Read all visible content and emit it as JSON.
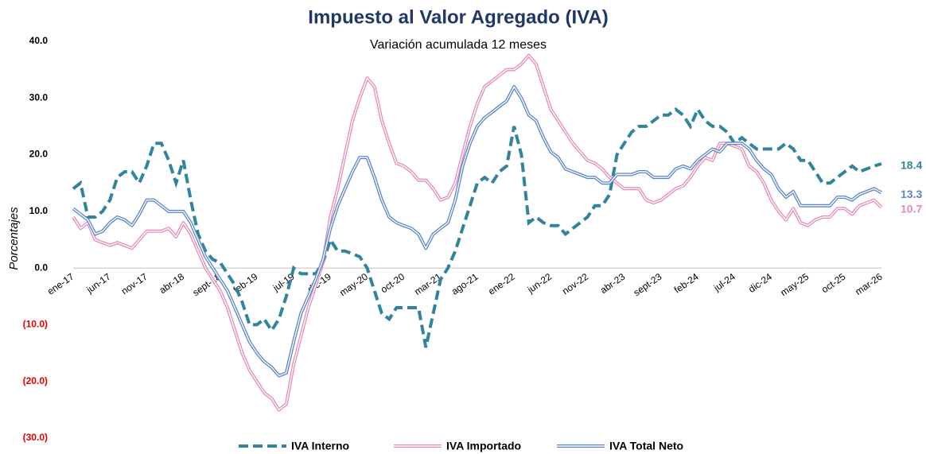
{
  "chart_data": {
    "type": "line",
    "title": "Impuesto al Valor Agregado (IVA)",
    "subtitle": "Variación acumulada 12 meses",
    "y_label": "Porcentajes",
    "categories": [
      "ene-17",
      null,
      null,
      null,
      null,
      "jun-17",
      null,
      null,
      null,
      null,
      "nov-17",
      null,
      null,
      null,
      null,
      "abr-18",
      null,
      null,
      null,
      null,
      "sept-18",
      null,
      null,
      null,
      null,
      "feb-19",
      null,
      null,
      null,
      null,
      "jul-19",
      null,
      null,
      null,
      null,
      "dic-19",
      null,
      null,
      null,
      null,
      "may-20",
      null,
      null,
      null,
      null,
      "oct-20",
      null,
      null,
      null,
      null,
      "mar-21",
      null,
      null,
      null,
      null,
      "ago-21",
      null,
      null,
      null,
      null,
      "ene-22",
      null,
      null,
      null,
      null,
      "jun-22",
      null,
      null,
      null,
      null,
      "nov-22",
      null,
      null,
      null,
      null,
      "abr-23",
      null,
      null,
      null,
      null,
      "sept-23",
      null,
      null,
      null,
      null,
      "feb-24",
      null,
      null,
      null,
      null,
      "jul-24",
      null,
      null,
      null,
      null,
      "dic-24",
      null,
      null,
      null,
      null,
      "may-25",
      null,
      null,
      null,
      null,
      "oct-25",
      null,
      null,
      null,
      null,
      "mar-26"
    ],
    "series": [
      {
        "name": "IVA Interno",
        "color": "#31849b",
        "style": "dashed",
        "values": [
          14,
          15,
          9,
          9,
          10,
          12,
          16,
          17,
          17,
          15,
          18,
          22,
          22,
          19,
          15,
          19,
          12,
          6,
          3,
          1.5,
          1,
          -1,
          -3,
          -6,
          -10,
          -10,
          -9,
          -11,
          -9,
          -5,
          0,
          -1,
          -1,
          -1,
          1,
          5,
          3,
          3,
          2.5,
          2,
          0,
          -4,
          -8,
          -9,
          -7,
          -7,
          -7,
          -7,
          -14,
          -8,
          -2,
          0,
          3,
          7,
          11,
          15,
          16,
          15,
          17,
          18,
          25,
          20,
          8,
          9,
          8,
          7.5,
          7.5,
          6,
          7,
          8,
          9,
          11,
          11,
          13,
          20,
          22,
          24,
          25,
          25,
          26,
          27,
          27,
          28,
          27,
          25,
          28,
          26,
          25,
          25,
          24,
          22,
          23,
          22,
          21,
          21,
          21,
          21,
          22,
          21,
          19,
          19,
          17,
          15,
          15,
          16,
          17,
          18,
          17,
          17.5,
          18,
          18.4
        ]
      },
      {
        "name": "IVA Importado",
        "color": "#e68ab8",
        "style": "double",
        "values": [
          9,
          7,
          8,
          5,
          4.5,
          4,
          4.5,
          4,
          3.5,
          5,
          6.5,
          6.5,
          6.5,
          7,
          5.5,
          8,
          6,
          3,
          0,
          -2,
          -4,
          -7,
          -11,
          -15,
          -18,
          -20,
          -22,
          -23,
          -25,
          -24,
          -17,
          -12,
          -7,
          -3,
          1,
          9,
          14,
          20,
          26,
          30,
          33.5,
          32,
          26,
          22,
          18.5,
          18,
          17,
          15.5,
          15.5,
          14,
          12,
          12.5,
          15,
          20,
          25,
          29,
          32,
          33,
          34,
          35,
          35,
          36,
          37.5,
          36,
          32,
          28,
          26,
          24,
          22,
          20.5,
          19,
          18.5,
          17.5,
          16,
          15,
          14,
          14,
          14,
          12,
          11.5,
          12,
          13,
          14,
          14.5,
          16,
          18,
          19.5,
          19,
          22,
          22,
          21.5,
          21,
          18,
          17,
          15,
          12,
          10,
          8.5,
          10.5,
          8,
          7.5,
          8.5,
          9,
          9,
          10.5,
          10.5,
          9.5,
          11,
          11.5,
          12,
          10.7
        ]
      },
      {
        "name": "IVA Total Neto",
        "color": "#5b85c9",
        "style": "double",
        "values": [
          10.5,
          9.5,
          8.5,
          6,
          6.5,
          8,
          9,
          8.5,
          7.5,
          9.5,
          12,
          12,
          11,
          10,
          10,
          10,
          8,
          5,
          2,
          0,
          -2,
          -4,
          -7,
          -10,
          -13,
          -15,
          -16.5,
          -17.5,
          -19,
          -18.5,
          -13,
          -8,
          -5,
          -2,
          1.5,
          7,
          11,
          14,
          17,
          19.5,
          19.5,
          16,
          12,
          9,
          8,
          7.5,
          7,
          6,
          3.5,
          6,
          7,
          8,
          12,
          18,
          22,
          25,
          26.5,
          27.5,
          28.5,
          29.5,
          32,
          30,
          27,
          26,
          23,
          20.5,
          19.5,
          17.5,
          17,
          16.5,
          16,
          16,
          15,
          15,
          16.5,
          16.5,
          16.5,
          17,
          17,
          16,
          16,
          16,
          17.5,
          18,
          17.5,
          19,
          20,
          21,
          20.5,
          22,
          22,
          22,
          21,
          19,
          17.5,
          16.5,
          14,
          12.5,
          13.5,
          11,
          11,
          11,
          11,
          11,
          12.5,
          12.5,
          12,
          13,
          13.5,
          14,
          13.3
        ]
      }
    ],
    "ylim": [
      -30,
      40
    ],
    "yticks": [
      {
        "value": -30,
        "label": "(30.0)"
      },
      {
        "value": -20,
        "label": "(20.0)"
      },
      {
        "value": -10,
        "label": "(10.0)"
      },
      {
        "value": 0,
        "label": "0.0"
      },
      {
        "value": 10,
        "label": "10.0"
      },
      {
        "value": 20,
        "label": "20.0"
      },
      {
        "value": 30,
        "label": "30.0"
      },
      {
        "value": 40,
        "label": "40.0"
      }
    ],
    "legend": "bottom"
  }
}
